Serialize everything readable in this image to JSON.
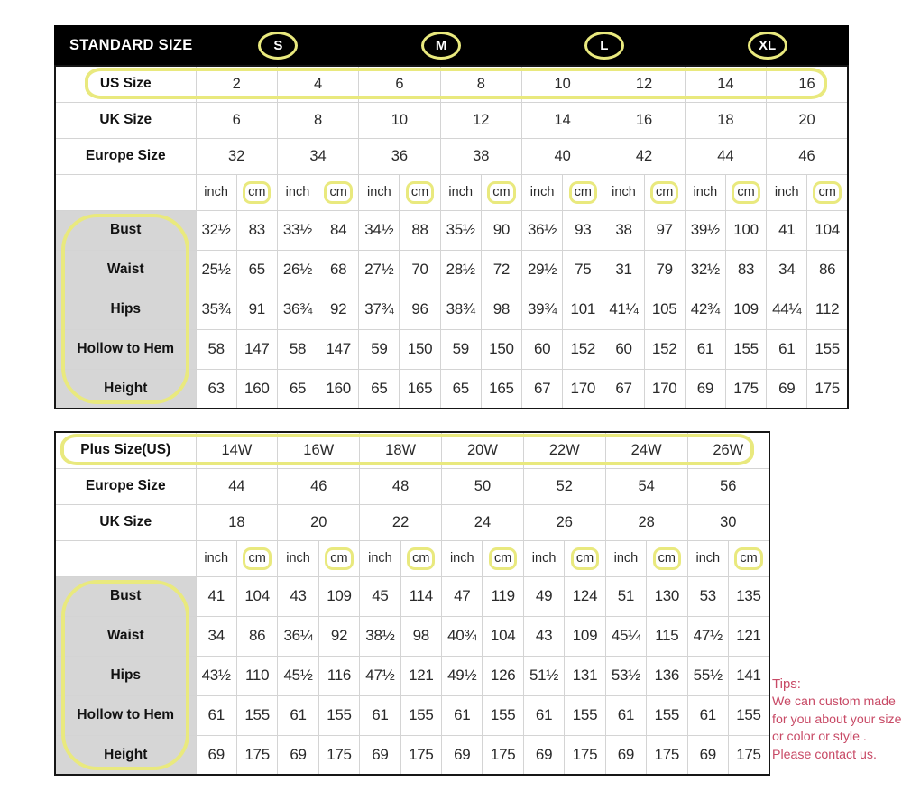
{
  "annotations": {
    "highlight_color": "#e9e97e"
  },
  "tips": {
    "heading": "Tips:",
    "lines": [
      "We can custom made",
      "for you about your size",
      "or color or style .",
      "Please contact us."
    ],
    "color": "#c84a66"
  },
  "chart_data": [
    {
      "type": "table",
      "title": "STANDARD SIZE",
      "size_groups": [
        "S",
        "M",
        "L",
        "XL"
      ],
      "units": [
        "inch",
        "cm"
      ],
      "size_rows": [
        {
          "label": "US Size",
          "values": [
            "2",
            "4",
            "6",
            "8",
            "10",
            "12",
            "14",
            "16"
          ],
          "highlighted": true
        },
        {
          "label": "UK Size",
          "values": [
            "6",
            "8",
            "10",
            "12",
            "14",
            "16",
            "18",
            "20"
          ],
          "highlighted": false
        },
        {
          "label": "Europe Size",
          "values": [
            "32",
            "34",
            "36",
            "38",
            "40",
            "42",
            "44",
            "46"
          ],
          "highlighted": false
        }
      ],
      "measure_rows": [
        {
          "label": "Bust",
          "values": [
            "32½",
            "83",
            "33½",
            "84",
            "34½",
            "88",
            "35½",
            "90",
            "36½",
            "93",
            "38",
            "97",
            "39½",
            "100",
            "41",
            "104"
          ]
        },
        {
          "label": "Waist",
          "values": [
            "25½",
            "65",
            "26½",
            "68",
            "27½",
            "70",
            "28½",
            "72",
            "29½",
            "75",
            "31",
            "79",
            "32½",
            "83",
            "34",
            "86"
          ]
        },
        {
          "label": "Hips",
          "values": [
            "35¾",
            "91",
            "36¾",
            "92",
            "37¾",
            "96",
            "38¾",
            "98",
            "39¾",
            "101",
            "41¼",
            "105",
            "42¾",
            "109",
            "44¼",
            "112"
          ]
        },
        {
          "label": "Hollow to Hem",
          "values": [
            "58",
            "147",
            "58",
            "147",
            "59",
            "150",
            "59",
            "150",
            "60",
            "152",
            "60",
            "152",
            "61",
            "155",
            "61",
            "155"
          ]
        },
        {
          "label": "Height",
          "values": [
            "63",
            "160",
            "65",
            "160",
            "65",
            "165",
            "65",
            "165",
            "67",
            "170",
            "67",
            "170",
            "69",
            "175",
            "69",
            "175"
          ]
        }
      ],
      "labels_highlighted": true,
      "cm_highlighted": true
    },
    {
      "type": "table",
      "title": "",
      "size_groups": [],
      "units": [
        "inch",
        "cm"
      ],
      "size_rows": [
        {
          "label": "Plus Size(US)",
          "values": [
            "14W",
            "16W",
            "18W",
            "20W",
            "22W",
            "24W",
            "26W"
          ],
          "highlighted": true
        },
        {
          "label": "Europe Size",
          "values": [
            "44",
            "46",
            "48",
            "50",
            "52",
            "54",
            "56"
          ],
          "highlighted": false
        },
        {
          "label": "UK Size",
          "values": [
            "18",
            "20",
            "22",
            "24",
            "26",
            "28",
            "30"
          ],
          "highlighted": false
        }
      ],
      "measure_rows": [
        {
          "label": "Bust",
          "values": [
            "41",
            "104",
            "43",
            "109",
            "45",
            "114",
            "47",
            "119",
            "49",
            "124",
            "51",
            "130",
            "53",
            "135"
          ]
        },
        {
          "label": "Waist",
          "values": [
            "34",
            "86",
            "36¼",
            "92",
            "38½",
            "98",
            "40¾",
            "104",
            "43",
            "109",
            "45¼",
            "115",
            "47½",
            "121"
          ]
        },
        {
          "label": "Hips",
          "values": [
            "43½",
            "110",
            "45½",
            "116",
            "47½",
            "121",
            "49½",
            "126",
            "51½",
            "131",
            "53½",
            "136",
            "55½",
            "141"
          ]
        },
        {
          "label": "Hollow to Hem",
          "values": [
            "61",
            "155",
            "61",
            "155",
            "61",
            "155",
            "61",
            "155",
            "61",
            "155",
            "61",
            "155",
            "61",
            "155"
          ]
        },
        {
          "label": "Height",
          "values": [
            "69",
            "175",
            "69",
            "175",
            "69",
            "175",
            "69",
            "175",
            "69",
            "175",
            "69",
            "175",
            "69",
            "175"
          ]
        }
      ],
      "labels_highlighted": true,
      "cm_highlighted": true
    }
  ]
}
